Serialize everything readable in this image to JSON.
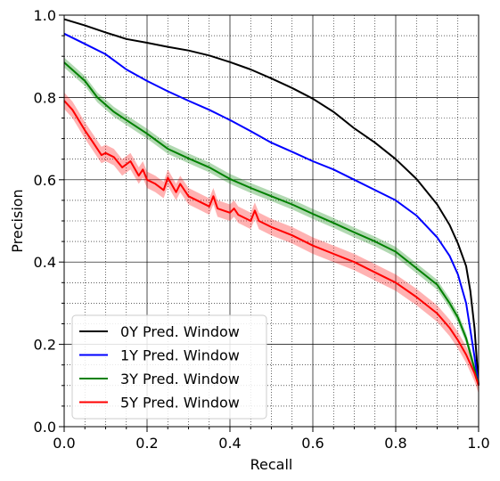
{
  "chart_data": {
    "type": "line",
    "title": "",
    "xlabel": "Recall",
    "ylabel": "Precision",
    "xlim": [
      0,
      1
    ],
    "ylim": [
      0,
      1
    ],
    "xticks": [
      "0.0",
      "0.2",
      "0.4",
      "0.6",
      "0.8",
      "1.0"
    ],
    "yticks": [
      "0.0",
      "0.2",
      "0.4",
      "0.6",
      "0.8",
      "1.0"
    ],
    "grid": "major solid, minor dotted",
    "legend_position": "lower-left",
    "series": [
      {
        "name": "0Y Pred. Window",
        "color": "#000000",
        "band": 0,
        "points": [
          [
            0,
            0.99
          ],
          [
            0.05,
            0.975
          ],
          [
            0.1,
            0.958
          ],
          [
            0.15,
            0.942
          ],
          [
            0.2,
            0.933
          ],
          [
            0.25,
            0.923
          ],
          [
            0.3,
            0.914
          ],
          [
            0.35,
            0.902
          ],
          [
            0.4,
            0.886
          ],
          [
            0.45,
            0.868
          ],
          [
            0.5,
            0.846
          ],
          [
            0.55,
            0.823
          ],
          [
            0.6,
            0.797
          ],
          [
            0.65,
            0.765
          ],
          [
            0.7,
            0.725
          ],
          [
            0.75,
            0.69
          ],
          [
            0.8,
            0.65
          ],
          [
            0.85,
            0.602
          ],
          [
            0.9,
            0.54
          ],
          [
            0.93,
            0.49
          ],
          [
            0.95,
            0.445
          ],
          [
            0.97,
            0.39
          ],
          [
            0.98,
            0.33
          ],
          [
            0.99,
            0.24
          ],
          [
            1.0,
            0.1
          ]
        ]
      },
      {
        "name": "1Y Pred. Window",
        "color": "#0000ff",
        "band": 0,
        "points": [
          [
            0,
            0.955
          ],
          [
            0.05,
            0.93
          ],
          [
            0.1,
            0.905
          ],
          [
            0.15,
            0.868
          ],
          [
            0.2,
            0.84
          ],
          [
            0.25,
            0.815
          ],
          [
            0.3,
            0.792
          ],
          [
            0.35,
            0.77
          ],
          [
            0.4,
            0.745
          ],
          [
            0.45,
            0.718
          ],
          [
            0.5,
            0.69
          ],
          [
            0.55,
            0.668
          ],
          [
            0.6,
            0.645
          ],
          [
            0.65,
            0.625
          ],
          [
            0.7,
            0.6
          ],
          [
            0.75,
            0.575
          ],
          [
            0.8,
            0.55
          ],
          [
            0.85,
            0.513
          ],
          [
            0.9,
            0.46
          ],
          [
            0.93,
            0.415
          ],
          [
            0.95,
            0.37
          ],
          [
            0.97,
            0.3
          ],
          [
            0.99,
            0.17
          ],
          [
            1.0,
            0.1
          ]
        ]
      },
      {
        "name": "3Y Pred. Window",
        "color": "#008000",
        "band": 0.012,
        "points": [
          [
            0,
            0.885
          ],
          [
            0.05,
            0.84
          ],
          [
            0.08,
            0.8
          ],
          [
            0.12,
            0.765
          ],
          [
            0.15,
            0.745
          ],
          [
            0.2,
            0.712
          ],
          [
            0.25,
            0.675
          ],
          [
            0.3,
            0.652
          ],
          [
            0.35,
            0.63
          ],
          [
            0.4,
            0.602
          ],
          [
            0.45,
            0.58
          ],
          [
            0.5,
            0.56
          ],
          [
            0.55,
            0.54
          ],
          [
            0.6,
            0.517
          ],
          [
            0.65,
            0.495
          ],
          [
            0.7,
            0.472
          ],
          [
            0.75,
            0.45
          ],
          [
            0.8,
            0.425
          ],
          [
            0.85,
            0.385
          ],
          [
            0.9,
            0.345
          ],
          [
            0.93,
            0.3
          ],
          [
            0.95,
            0.265
          ],
          [
            0.97,
            0.215
          ],
          [
            0.99,
            0.14
          ],
          [
            1.0,
            0.1
          ]
        ]
      },
      {
        "name": "5Y Pred. Window",
        "color": "#ff0000",
        "band": 0.02,
        "points": [
          [
            0,
            0.792
          ],
          [
            0.02,
            0.77
          ],
          [
            0.05,
            0.72
          ],
          [
            0.07,
            0.69
          ],
          [
            0.09,
            0.66
          ],
          [
            0.1,
            0.665
          ],
          [
            0.12,
            0.655
          ],
          [
            0.14,
            0.63
          ],
          [
            0.16,
            0.645
          ],
          [
            0.18,
            0.61
          ],
          [
            0.19,
            0.625
          ],
          [
            0.2,
            0.6
          ],
          [
            0.22,
            0.59
          ],
          [
            0.24,
            0.575
          ],
          [
            0.25,
            0.605
          ],
          [
            0.27,
            0.57
          ],
          [
            0.28,
            0.59
          ],
          [
            0.3,
            0.56
          ],
          [
            0.33,
            0.545
          ],
          [
            0.35,
            0.535
          ],
          [
            0.36,
            0.56
          ],
          [
            0.37,
            0.53
          ],
          [
            0.4,
            0.52
          ],
          [
            0.41,
            0.53
          ],
          [
            0.42,
            0.515
          ],
          [
            0.45,
            0.5
          ],
          [
            0.46,
            0.525
          ],
          [
            0.47,
            0.5
          ],
          [
            0.5,
            0.485
          ],
          [
            0.55,
            0.465
          ],
          [
            0.6,
            0.44
          ],
          [
            0.65,
            0.42
          ],
          [
            0.7,
            0.4
          ],
          [
            0.75,
            0.375
          ],
          [
            0.8,
            0.35
          ],
          [
            0.85,
            0.315
          ],
          [
            0.9,
            0.275
          ],
          [
            0.93,
            0.24
          ],
          [
            0.95,
            0.21
          ],
          [
            0.97,
            0.175
          ],
          [
            0.99,
            0.13
          ],
          [
            1.0,
            0.1
          ]
        ]
      }
    ]
  }
}
